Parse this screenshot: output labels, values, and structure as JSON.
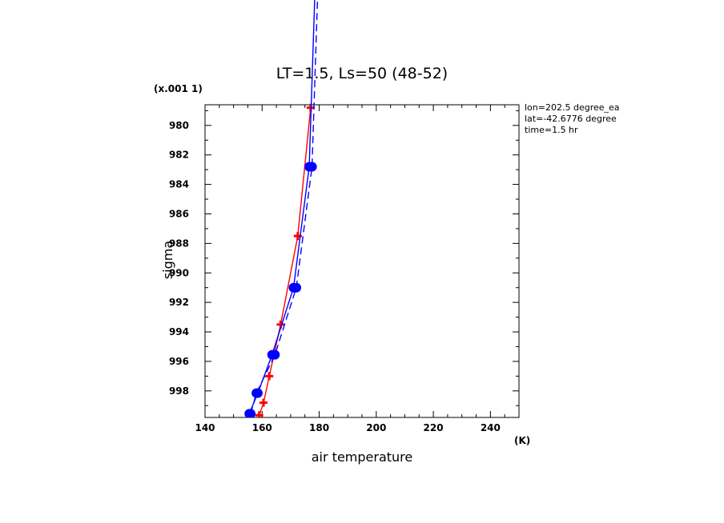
{
  "chart_data": {
    "type": "line",
    "title": "LT=1.5, Ls=50 (48-52)",
    "xlabel": "air temperature",
    "ylabel": "sigma",
    "x_unit": "(K)",
    "y_scale_note": "(x.001 1)",
    "xlim": [
      140,
      250
    ],
    "ylim": [
      999.8,
      978.6
    ],
    "y_inverted": true,
    "x_ticks": [
      140,
      160,
      180,
      200,
      220,
      240
    ],
    "y_ticks": [
      980,
      982,
      984,
      986,
      988,
      990,
      992,
      994,
      996,
      998
    ],
    "info": [
      "lon=202.5 degree_ea",
      "lat=-42.6776 degree",
      "time=1.5 hr"
    ],
    "grid": false,
    "series": [
      {
        "color": "#ff0000",
        "marker": "plus",
        "style": "solid",
        "points": [
          {
            "x": 159.0,
            "y": 999.65
          },
          {
            "x": 160.5,
            "y": 998.8
          },
          {
            "x": 162.5,
            "y": 997.0
          },
          {
            "x": 166.5,
            "y": 993.5
          },
          {
            "x": 172.5,
            "y": 987.5
          },
          {
            "x": 177.0,
            "y": 978.8
          }
        ]
      },
      {
        "color": "#0000ff",
        "marker": "circle",
        "style": "solid",
        "points": [
          {
            "x": 155.5,
            "y": 999.55
          },
          {
            "x": 158.5,
            "y": 998.15
          },
          {
            "x": 163.5,
            "y": 995.55
          },
          {
            "x": 171.0,
            "y": 991.0
          },
          {
            "x": 176.5,
            "y": 982.8
          },
          {
            "x": 179.5,
            "y": 965.0
          }
        ]
      },
      {
        "color": "#0000ff",
        "marker": "circle",
        "style": "dashed",
        "points": [
          {
            "x": 156.0,
            "y": 999.55
          },
          {
            "x": 158.0,
            "y": 998.15
          },
          {
            "x": 164.5,
            "y": 995.55
          },
          {
            "x": 172.0,
            "y": 991.0
          },
          {
            "x": 177.5,
            "y": 982.8
          },
          {
            "x": 180.5,
            "y": 965.0
          }
        ]
      }
    ]
  }
}
